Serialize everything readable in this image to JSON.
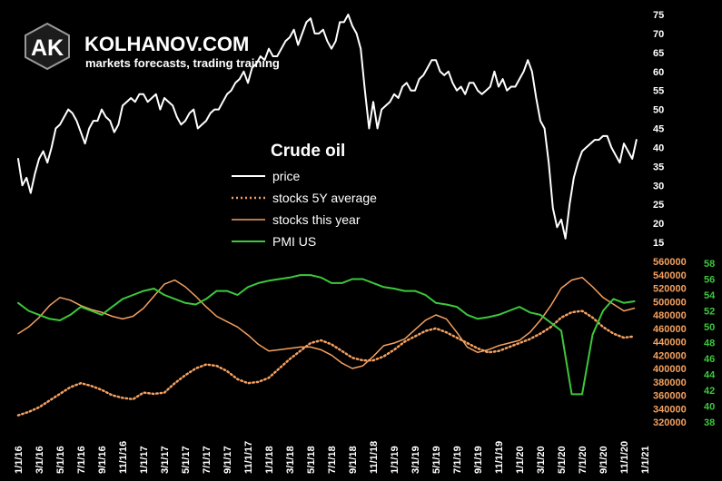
{
  "brand": {
    "logo_text": "AK",
    "name": "KOLHANOV.COM",
    "tagline": "markets forecasts, trading training"
  },
  "chart_data": {
    "type": "line",
    "title": "Crude oil",
    "legend": [
      {
        "name": "price",
        "color": "#ffffff",
        "style": "solid"
      },
      {
        "name": "stocks 5Y average",
        "color": "#f4a060",
        "style": "dotted"
      },
      {
        "name": "stocks this year",
        "color": "#f4a060",
        "style": "solid"
      },
      {
        "name": "PMI US",
        "color": "#3cc83c",
        "style": "solid"
      }
    ],
    "x_ticks": [
      "1/1/16",
      "3/1/16",
      "5/1/16",
      "7/1/16",
      "9/1/16",
      "11/1/16",
      "1/1/17",
      "3/1/17",
      "5/1/17",
      "7/1/17",
      "9/1/17",
      "11/1/17",
      "1/1/18",
      "3/1/18",
      "5/1/18",
      "7/1/18",
      "9/1/18",
      "11/1/18",
      "1/1/19",
      "3/1/19",
      "5/1/19",
      "7/1/19",
      "9/1/19",
      "11/1/19",
      "1/1/20",
      "3/1/20",
      "5/1/20",
      "7/1/20",
      "9/1/20",
      "11/1/20",
      "1/1/21"
    ],
    "price_axis": {
      "ticks": [
        15,
        20,
        25,
        30,
        35,
        40,
        45,
        50,
        55,
        60,
        65,
        70,
        75
      ],
      "range": [
        15,
        75
      ],
      "color": "#ffffff"
    },
    "stocks_axis": {
      "ticks": [
        320000,
        340000,
        360000,
        380000,
        400000,
        420000,
        440000,
        460000,
        480000,
        500000,
        520000,
        540000,
        560000
      ],
      "range": [
        320000,
        560000
      ],
      "color": "#f4a060"
    },
    "pmi_axis": {
      "ticks": [
        38,
        40,
        42,
        44,
        46,
        48,
        50,
        52,
        54,
        56,
        58
      ],
      "range": [
        38,
        58
      ],
      "color": "#3cc83c"
    },
    "series": {
      "price": {
        "x": [
          0,
          0.2,
          0.4,
          0.6,
          0.8,
          1,
          1.2,
          1.4,
          1.6,
          1.8,
          2,
          2.2,
          2.4,
          2.6,
          2.8,
          3,
          3.2,
          3.4,
          3.6,
          3.8,
          4,
          4.2,
          4.4,
          4.6,
          4.8,
          5,
          5.2,
          5.4,
          5.6,
          5.8,
          6,
          6.2,
          6.4,
          6.6,
          6.8,
          7,
          7.2,
          7.4,
          7.6,
          7.8,
          8,
          8.2,
          8.4,
          8.6,
          8.8,
          9,
          9.2,
          9.4,
          9.6,
          9.8,
          10,
          10.2,
          10.4,
          10.6,
          10.8,
          11,
          11.2,
          11.4,
          11.6,
          11.8,
          12,
          12.2,
          12.4,
          12.6,
          12.8,
          13,
          13.2,
          13.4,
          13.6,
          13.8,
          14,
          14.2,
          14.4,
          14.6,
          14.8,
          15,
          15.2,
          15.4,
          15.6,
          15.8,
          16,
          16.2,
          16.4,
          16.6,
          16.8,
          17,
          17.2,
          17.4,
          17.6,
          17.8,
          18,
          18.2,
          18.4,
          18.6,
          18.8,
          19,
          19.2,
          19.4,
          19.6,
          19.8,
          20,
          20.2,
          20.4,
          20.6,
          20.8,
          21,
          21.2,
          21.4,
          21.6,
          21.8,
          22,
          22.2,
          22.4,
          22.6,
          22.8,
          23,
          23.2,
          23.4,
          23.6,
          23.8,
          24,
          24.2,
          24.4,
          24.6,
          24.8,
          25,
          25.2,
          25.4,
          25.6,
          25.8,
          26,
          26.2,
          26.4,
          26.6,
          26.8,
          27,
          27.2,
          27.4,
          27.6,
          27.8,
          28,
          28.2,
          28.4,
          28.6,
          28.8,
          29,
          29.2,
          29.4,
          29.6
        ],
        "values": [
          37,
          30,
          32,
          28,
          33,
          37,
          39,
          36,
          40,
          45,
          46,
          48,
          50,
          49,
          47,
          44,
          41,
          45,
          47,
          47,
          50,
          48,
          47,
          44,
          46,
          51,
          52,
          53,
          52,
          54,
          54,
          52,
          53,
          54,
          50,
          53,
          52,
          51,
          48,
          46,
          47,
          49,
          50,
          45,
          46,
          47,
          49,
          50,
          50,
          52,
          54,
          55,
          57,
          58,
          60,
          57,
          61,
          62,
          64,
          63,
          66,
          64,
          64,
          66,
          68,
          69,
          71,
          67,
          70,
          73,
          74,
          70,
          70,
          71,
          68,
          66,
          68,
          73,
          73,
          75,
          72,
          70,
          66,
          55,
          45,
          52,
          45,
          50,
          51,
          52,
          54,
          53,
          56,
          57,
          55,
          55,
          58,
          59,
          61,
          63,
          63,
          60,
          59,
          60,
          57,
          55,
          56,
          54,
          57,
          57,
          55,
          54,
          55,
          56,
          60,
          56,
          58,
          55,
          56,
          56,
          58,
          60,
          63,
          60,
          53,
          47,
          45,
          36,
          24,
          19,
          21,
          16,
          25,
          32,
          36,
          39,
          40,
          41,
          42,
          42,
          43,
          43,
          40,
          38,
          36,
          41,
          39,
          37,
          42
        ],
        "axis": "price"
      },
      "stocks_5y_average": {
        "x": [
          0,
          0.5,
          1,
          1.5,
          2,
          2.5,
          3,
          3.5,
          4,
          4.5,
          5,
          5.5,
          6,
          6.5,
          7,
          7.5,
          8,
          8.5,
          9,
          9.5,
          10,
          10.5,
          11,
          11.5,
          12,
          12.5,
          13,
          13.5,
          14,
          14.5,
          15,
          15.5,
          16,
          16.5,
          17,
          17.5,
          18,
          18.5,
          19,
          19.5,
          20,
          20.5,
          21,
          21.5,
          22,
          22.5,
          23,
          23.5,
          24,
          24.5,
          25,
          25.5,
          26,
          26.5,
          27,
          27.5,
          28,
          28.5,
          29,
          29.5
        ],
        "values": [
          330000,
          335000,
          342000,
          352000,
          362000,
          372000,
          378000,
          374000,
          368000,
          360000,
          356000,
          354000,
          364000,
          362000,
          364000,
          378000,
          390000,
          400000,
          406000,
          404000,
          396000,
          384000,
          378000,
          380000,
          386000,
          400000,
          414000,
          426000,
          438000,
          442000,
          436000,
          426000,
          416000,
          412000,
          412000,
          418000,
          428000,
          440000,
          448000,
          456000,
          460000,
          454000,
          446000,
          438000,
          430000,
          424000,
          426000,
          432000,
          438000,
          444000,
          452000,
          462000,
          476000,
          484000,
          486000,
          476000,
          462000,
          452000,
          446000,
          448000
        ],
        "axis": "stocks"
      },
      "stocks_this_year": {
        "x": [
          0,
          0.5,
          1,
          1.5,
          2,
          2.5,
          3,
          3.5,
          4,
          4.5,
          5,
          5.5,
          6,
          6.5,
          7,
          7.5,
          8,
          8.5,
          9,
          9.5,
          10,
          10.5,
          11,
          11.5,
          12,
          12.5,
          13,
          13.5,
          14,
          14.5,
          15,
          15.5,
          16,
          16.5,
          17,
          17.5,
          18,
          18.5,
          19,
          19.5,
          20,
          20.5,
          21,
          21.5,
          22,
          22.5,
          23,
          23.5,
          24,
          24.5,
          25,
          25.5,
          26,
          26.5,
          27,
          27.5,
          28,
          28.5,
          29,
          29.5
        ],
        "values": [
          452000,
          462000,
          476000,
          494000,
          506000,
          502000,
          494000,
          488000,
          484000,
          478000,
          474000,
          478000,
          490000,
          508000,
          526000,
          532000,
          522000,
          508000,
          492000,
          478000,
          470000,
          462000,
          450000,
          436000,
          426000,
          428000,
          430000,
          432000,
          432000,
          428000,
          420000,
          408000,
          400000,
          404000,
          418000,
          434000,
          438000,
          444000,
          458000,
          472000,
          480000,
          474000,
          454000,
          432000,
          424000,
          428000,
          434000,
          438000,
          442000,
          454000,
          472000,
          494000,
          520000,
          532000,
          536000,
          522000,
          506000,
          496000,
          486000,
          490000
        ],
        "axis": "stocks"
      },
      "pmi_us": {
        "x": [
          0,
          0.5,
          1,
          1.5,
          2,
          2.5,
          3,
          3.5,
          4,
          4.5,
          5,
          5.5,
          6,
          6.5,
          7,
          7.5,
          8,
          8.5,
          9,
          9.5,
          10,
          10.5,
          11,
          11.5,
          12,
          12.5,
          13,
          13.5,
          14,
          14.5,
          15,
          15.5,
          16,
          16.5,
          17,
          17.5,
          18,
          18.5,
          19,
          19.5,
          20,
          20.5,
          21,
          21.5,
          22,
          22.5,
          23,
          23.5,
          24,
          24.5,
          25,
          25.5,
          26,
          26.5,
          27,
          27.5,
          28,
          28.5,
          29,
          29.5
        ],
        "values": [
          53,
          52,
          51.5,
          51,
          50.8,
          51.5,
          52.5,
          52,
          51.5,
          52.5,
          53.5,
          54,
          54.5,
          54.8,
          54,
          53.5,
          53,
          52.8,
          53.5,
          54.5,
          54.5,
          54,
          55,
          55.5,
          55.8,
          56,
          56.2,
          56.5,
          56.5,
          56.2,
          55.5,
          55.5,
          56,
          56,
          55.5,
          55,
          54.8,
          54.5,
          54.5,
          54,
          53,
          52.8,
          52.5,
          51.5,
          51,
          51.2,
          51.5,
          52,
          52.5,
          51.8,
          51.5,
          50.5,
          49.5,
          41.5,
          41.5,
          49,
          52,
          53.5,
          53,
          53.2
        ],
        "axis": "pmi"
      }
    }
  }
}
